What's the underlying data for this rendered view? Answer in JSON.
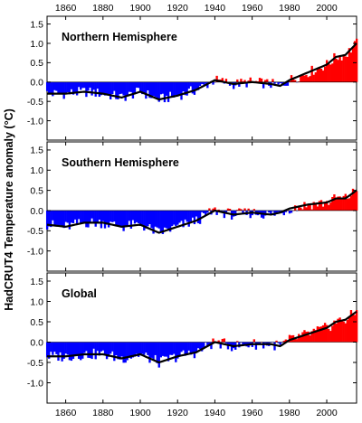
{
  "chart_data": {
    "type": "bar",
    "ylabel_prefix": "HadCRUT4",
    "ylabel": "Temperature anomaly (°C)",
    "xlim": [
      1850,
      2016
    ],
    "ylim": [
      -1.5,
      1.7
    ],
    "x_ticks": [
      1860,
      1880,
      1900,
      1920,
      1940,
      1960,
      1980,
      2000
    ],
    "y_ticks": [
      -1.0,
      -0.5,
      0.0,
      0.5,
      1.0,
      1.5
    ],
    "y_tick_labels": [
      "-1.0",
      "-0.5",
      "0.0",
      "0.5",
      "1.0",
      "1.5"
    ],
    "colors": {
      "positive": "#ff0000",
      "negative": "#0000ff",
      "smooth": "#000000"
    },
    "series_encoding": "annual anomaly bars (red above zero, blue below) with black smoothed line",
    "panels": [
      {
        "title": "Northern Hemisphere",
        "anchors": [
          [
            1850,
            -0.3
          ],
          [
            1860,
            -0.3
          ],
          [
            1870,
            -0.25
          ],
          [
            1880,
            -0.3
          ],
          [
            1890,
            -0.4
          ],
          [
            1900,
            -0.25
          ],
          [
            1910,
            -0.45
          ],
          [
            1920,
            -0.35
          ],
          [
            1930,
            -0.2
          ],
          [
            1940,
            0.05
          ],
          [
            1950,
            -0.05
          ],
          [
            1960,
            0.0
          ],
          [
            1970,
            -0.05
          ],
          [
            1975,
            -0.1
          ],
          [
            1980,
            0.05
          ],
          [
            1990,
            0.25
          ],
          [
            2000,
            0.45
          ],
          [
            2005,
            0.65
          ],
          [
            2010,
            0.7
          ],
          [
            2016,
            1.0
          ]
        ]
      },
      {
        "title": "Southern Hemisphere",
        "anchors": [
          [
            1850,
            -0.35
          ],
          [
            1860,
            -0.4
          ],
          [
            1870,
            -0.3
          ],
          [
            1880,
            -0.3
          ],
          [
            1890,
            -0.4
          ],
          [
            1900,
            -0.35
          ],
          [
            1910,
            -0.55
          ],
          [
            1920,
            -0.4
          ],
          [
            1930,
            -0.25
          ],
          [
            1940,
            0.0
          ],
          [
            1950,
            -0.1
          ],
          [
            1960,
            -0.05
          ],
          [
            1970,
            -0.1
          ],
          [
            1975,
            -0.05
          ],
          [
            1980,
            0.05
          ],
          [
            1990,
            0.15
          ],
          [
            2000,
            0.2
          ],
          [
            2005,
            0.3
          ],
          [
            2010,
            0.3
          ],
          [
            2016,
            0.5
          ]
        ]
      },
      {
        "title": "Global",
        "anchors": [
          [
            1850,
            -0.35
          ],
          [
            1860,
            -0.35
          ],
          [
            1870,
            -0.3
          ],
          [
            1880,
            -0.3
          ],
          [
            1890,
            -0.4
          ],
          [
            1900,
            -0.3
          ],
          [
            1910,
            -0.5
          ],
          [
            1920,
            -0.35
          ],
          [
            1930,
            -0.25
          ],
          [
            1940,
            0.0
          ],
          [
            1950,
            -0.1
          ],
          [
            1960,
            -0.05
          ],
          [
            1970,
            -0.05
          ],
          [
            1975,
            -0.1
          ],
          [
            1980,
            0.05
          ],
          [
            1990,
            0.2
          ],
          [
            2000,
            0.35
          ],
          [
            2005,
            0.5
          ],
          [
            2010,
            0.55
          ],
          [
            2016,
            0.75
          ]
        ]
      }
    ]
  }
}
